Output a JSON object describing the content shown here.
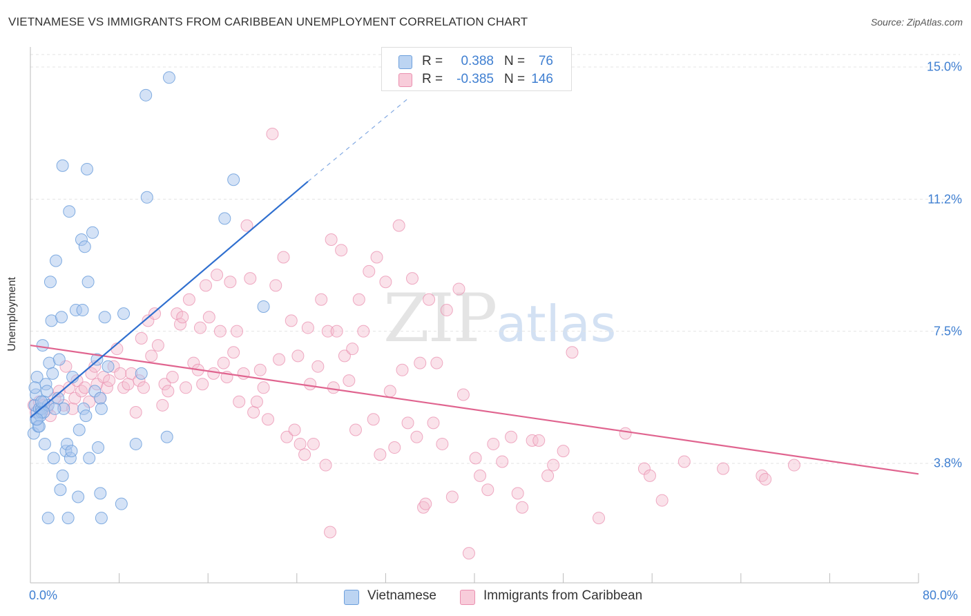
{
  "title": "VIETNAMESE VS IMMIGRANTS FROM CARIBBEAN UNEMPLOYMENT CORRELATION CHART",
  "source": "Source: ZipAtlas.com",
  "watermark": {
    "zip": "ZIP",
    "atlas": "atlas"
  },
  "legend_top": {
    "rows": [
      {
        "r_label": "R =",
        "r_value": "0.388",
        "n_label": "N =",
        "n_value": "76"
      },
      {
        "r_label": "R =",
        "r_value": "-0.385",
        "n_label": "N =",
        "n_value": "146"
      }
    ]
  },
  "chart_data": {
    "type": "scatter",
    "ylabel": "Unemployment",
    "xlabel": "",
    "x_tick_labels": {
      "left": "0.0%",
      "right": "80.0%"
    },
    "y_tick_labels": [
      "15.0%",
      "11.2%",
      "7.5%",
      "3.8%"
    ],
    "y_tick_values": [
      15.0,
      11.25,
      7.5,
      3.75
    ],
    "xlim": [
      0,
      80
    ],
    "ylim": [
      0,
      15.4
    ],
    "grid": true,
    "legend_position": "bottom",
    "colors": {
      "vietnamese": "#a9c6ee",
      "vietnamese_edge": "#6c9fdc",
      "vietnamese_line": "#2f6fcf",
      "caribbean": "#f5bfd0",
      "caribbean_edge": "#ea8faf",
      "caribbean_line": "#e0648f",
      "value_text": "#3f7fd1"
    },
    "series": [
      {
        "name": "Vietnamese",
        "trend": {
          "x0": 0.0,
          "y0": 5.05,
          "x1": 25.0,
          "y1": 11.75,
          "x_dash_end": 34.0,
          "y_dash_end": 14.1
        },
        "points": [
          [
            0.3,
            4.6
          ],
          [
            0.5,
            5.0
          ],
          [
            0.6,
            5.2
          ],
          [
            0.4,
            5.4
          ],
          [
            0.8,
            5.3
          ],
          [
            0.5,
            5.7
          ],
          [
            0.6,
            6.2
          ],
          [
            0.9,
            5.1
          ],
          [
            0.7,
            4.8
          ],
          [
            1.0,
            5.3
          ],
          [
            1.2,
            5.5
          ],
          [
            1.1,
            7.1
          ],
          [
            1.4,
            6.0
          ],
          [
            1.5,
            5.8
          ],
          [
            1.3,
            4.3
          ],
          [
            1.0,
            5.2
          ],
          [
            1.6,
            5.4
          ],
          [
            1.8,
            8.9
          ],
          [
            1.9,
            7.8
          ],
          [
            1.7,
            6.6
          ],
          [
            2.0,
            6.3
          ],
          [
            2.1,
            3.9
          ],
          [
            2.3,
            9.5
          ],
          [
            2.5,
            5.6
          ],
          [
            2.6,
            6.7
          ],
          [
            2.8,
            7.9
          ],
          [
            2.9,
            3.4
          ],
          [
            3.0,
            5.3
          ],
          [
            3.2,
            4.1
          ],
          [
            3.3,
            4.3
          ],
          [
            3.5,
            10.9
          ],
          [
            3.6,
            3.9
          ],
          [
            3.4,
            2.2
          ],
          [
            1.6,
            2.2
          ],
          [
            2.7,
            3.0
          ],
          [
            2.9,
            12.2
          ],
          [
            3.8,
            6.2
          ],
          [
            4.1,
            8.1
          ],
          [
            4.3,
            2.8
          ],
          [
            4.4,
            4.7
          ],
          [
            4.6,
            10.1
          ],
          [
            4.7,
            8.1
          ],
          [
            4.8,
            5.3
          ],
          [
            4.9,
            9.9
          ],
          [
            5.0,
            5.1
          ],
          [
            5.1,
            12.1
          ],
          [
            5.2,
            8.9
          ],
          [
            5.3,
            3.9
          ],
          [
            5.6,
            10.3
          ],
          [
            5.8,
            5.8
          ],
          [
            6.0,
            6.7
          ],
          [
            6.1,
            4.2
          ],
          [
            6.3,
            5.6
          ],
          [
            6.4,
            5.3
          ],
          [
            6.3,
            2.9
          ],
          [
            6.4,
            2.2
          ],
          [
            6.7,
            7.9
          ],
          [
            7.0,
            6.5
          ],
          [
            8.2,
            2.6
          ],
          [
            8.4,
            8.0
          ],
          [
            9.5,
            4.3
          ],
          [
            10.0,
            6.3
          ],
          [
            10.4,
            14.2
          ],
          [
            10.5,
            11.3
          ],
          [
            12.3,
            4.5
          ],
          [
            12.5,
            14.7
          ],
          [
            17.5,
            10.7
          ],
          [
            18.3,
            11.8
          ],
          [
            21.0,
            8.2
          ],
          [
            0.4,
            5.9
          ],
          [
            0.8,
            4.8
          ],
          [
            1.2,
            5.2
          ],
          [
            2.2,
            5.3
          ],
          [
            3.7,
            4.1
          ],
          [
            0.6,
            5.0
          ],
          [
            1.0,
            5.5
          ]
        ]
      },
      {
        "name": "Immigrants from Caribbean",
        "trend": {
          "x0": 0.0,
          "y0": 7.1,
          "x1": 80.0,
          "y1": 3.45
        },
        "points": [
          [
            0.3,
            5.4
          ],
          [
            0.5,
            5.2
          ],
          [
            0.8,
            5.5
          ],
          [
            1.2,
            5.4
          ],
          [
            1.5,
            5.3
          ],
          [
            1.8,
            5.1
          ],
          [
            2.2,
            5.6
          ],
          [
            2.6,
            5.8
          ],
          [
            3.0,
            5.4
          ],
          [
            3.2,
            6.5
          ],
          [
            3.5,
            5.9
          ],
          [
            3.8,
            5.3
          ],
          [
            4.0,
            5.6
          ],
          [
            4.2,
            6.1
          ],
          [
            4.6,
            5.8
          ],
          [
            4.9,
            5.9
          ],
          [
            5.3,
            5.5
          ],
          [
            5.5,
            6.3
          ],
          [
            5.8,
            6.5
          ],
          [
            6.0,
            6.0
          ],
          [
            6.3,
            5.6
          ],
          [
            6.6,
            6.2
          ],
          [
            6.9,
            5.9
          ],
          [
            7.1,
            6.1
          ],
          [
            7.5,
            6.5
          ],
          [
            7.8,
            7.0
          ],
          [
            8.1,
            6.3
          ],
          [
            8.4,
            5.9
          ],
          [
            8.8,
            6.0
          ],
          [
            9.1,
            6.3
          ],
          [
            9.5,
            5.2
          ],
          [
            9.8,
            6.1
          ],
          [
            10.0,
            7.3
          ],
          [
            10.2,
            5.9
          ],
          [
            10.6,
            7.8
          ],
          [
            10.9,
            6.8
          ],
          [
            11.2,
            8.0
          ],
          [
            11.5,
            7.1
          ],
          [
            11.9,
            5.4
          ],
          [
            12.1,
            6.0
          ],
          [
            12.4,
            5.8
          ],
          [
            12.8,
            6.2
          ],
          [
            13.2,
            8.0
          ],
          [
            13.5,
            7.7
          ],
          [
            13.7,
            7.9
          ],
          [
            14.0,
            5.9
          ],
          [
            14.3,
            8.4
          ],
          [
            14.7,
            6.6
          ],
          [
            15.1,
            6.4
          ],
          [
            15.3,
            7.6
          ],
          [
            15.5,
            6.0
          ],
          [
            15.8,
            8.8
          ],
          [
            16.1,
            7.9
          ],
          [
            16.5,
            6.3
          ],
          [
            16.8,
            9.1
          ],
          [
            17.1,
            7.5
          ],
          [
            17.4,
            6.6
          ],
          [
            17.7,
            6.2
          ],
          [
            18.0,
            8.9
          ],
          [
            18.3,
            6.9
          ],
          [
            18.6,
            7.5
          ],
          [
            18.8,
            5.5
          ],
          [
            19.2,
            6.3
          ],
          [
            19.5,
            10.5
          ],
          [
            19.8,
            9.0
          ],
          [
            20.1,
            5.2
          ],
          [
            20.4,
            5.5
          ],
          [
            20.7,
            6.4
          ],
          [
            21.0,
            5.9
          ],
          [
            21.4,
            5.0
          ],
          [
            21.8,
            13.1
          ],
          [
            22.1,
            8.8
          ],
          [
            22.4,
            6.7
          ],
          [
            22.8,
            9.6
          ],
          [
            23.1,
            4.5
          ],
          [
            23.5,
            7.8
          ],
          [
            23.8,
            4.7
          ],
          [
            24.1,
            6.8
          ],
          [
            24.3,
            4.3
          ],
          [
            24.7,
            4.0
          ],
          [
            25.0,
            7.6
          ],
          [
            25.2,
            6.0
          ],
          [
            25.5,
            4.3
          ],
          [
            25.9,
            6.5
          ],
          [
            26.2,
            8.4
          ],
          [
            26.6,
            3.7
          ],
          [
            26.8,
            7.5
          ],
          [
            27.1,
            10.1
          ],
          [
            27.3,
            5.9
          ],
          [
            27.6,
            7.5
          ],
          [
            28.0,
            9.8
          ],
          [
            28.3,
            6.8
          ],
          [
            28.7,
            6.1
          ],
          [
            29.0,
            7.0
          ],
          [
            29.3,
            4.7
          ],
          [
            29.6,
            8.4
          ],
          [
            30.0,
            7.5
          ],
          [
            30.5,
            9.2
          ],
          [
            30.9,
            5.0
          ],
          [
            31.2,
            9.6
          ],
          [
            31.5,
            4.0
          ],
          [
            32.0,
            8.9
          ],
          [
            32.4,
            5.8
          ],
          [
            32.8,
            4.2
          ],
          [
            33.2,
            10.5
          ],
          [
            33.5,
            6.4
          ],
          [
            34.0,
            4.9
          ],
          [
            34.4,
            9.0
          ],
          [
            34.8,
            4.5
          ],
          [
            35.1,
            6.6
          ],
          [
            35.4,
            2.5
          ],
          [
            35.6,
            2.6
          ],
          [
            35.9,
            8.4
          ],
          [
            36.3,
            4.9
          ],
          [
            36.6,
            6.6
          ],
          [
            37.1,
            4.3
          ],
          [
            37.5,
            8.1
          ],
          [
            38.0,
            2.8
          ],
          [
            38.6,
            8.7
          ],
          [
            39.0,
            5.7
          ],
          [
            39.5,
            1.2
          ],
          [
            40.1,
            3.9
          ],
          [
            40.5,
            3.4
          ],
          [
            41.2,
            3.0
          ],
          [
            41.7,
            4.3
          ],
          [
            42.5,
            3.8
          ],
          [
            43.3,
            4.5
          ],
          [
            43.9,
            2.9
          ],
          [
            44.3,
            2.5
          ],
          [
            45.2,
            4.4
          ],
          [
            45.8,
            4.4
          ],
          [
            46.6,
            3.4
          ],
          [
            47.1,
            3.7
          ],
          [
            48.0,
            4.1
          ],
          [
            48.8,
            6.9
          ],
          [
            51.2,
            2.2
          ],
          [
            53.6,
            4.6
          ],
          [
            55.3,
            3.6
          ],
          [
            55.8,
            3.4
          ],
          [
            56.9,
            2.7
          ],
          [
            58.9,
            3.8
          ],
          [
            62.4,
            3.6
          ],
          [
            65.9,
            3.4
          ],
          [
            66.2,
            3.3
          ],
          [
            68.8,
            3.7
          ],
          [
            27.0,
            1.8
          ]
        ]
      }
    ]
  },
  "bottom_legend": {
    "items": [
      {
        "label": "Vietnamese"
      },
      {
        "label": "Immigrants from Caribbean"
      }
    ]
  }
}
